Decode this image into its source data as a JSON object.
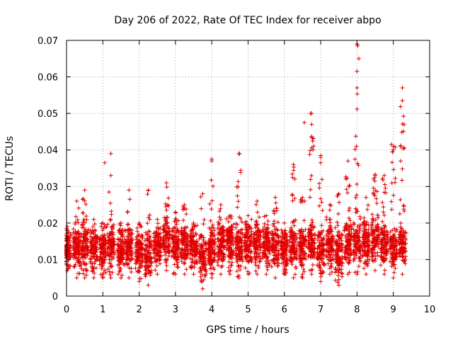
{
  "chart_data": {
    "type": "scatter",
    "title": "Day 206 of 2022, Rate Of TEC Index for receiver abpo",
    "xlabel": "GPS time / hours",
    "ylabel": "ROTI / TECUs",
    "xlim": [
      0,
      10
    ],
    "ylim": [
      0,
      0.07
    ],
    "xticks": [
      "0",
      "1",
      "2",
      "3",
      "4",
      "5",
      "6",
      "7",
      "8",
      "9",
      "10"
    ],
    "yticks": [
      "0",
      "0.01",
      "0.02",
      "0.03",
      "0.04",
      "0.05",
      "0.06",
      "0.07"
    ],
    "grid": true,
    "marker": "+",
    "color": "#e00000",
    "clusters": [
      {
        "x": 0.02,
        "low": 0.007,
        "high": 0.019
      },
      {
        "x": 0.28,
        "low": 0.005,
        "high": 0.026
      },
      {
        "x": 0.5,
        "low": 0.005,
        "high": 0.029
      },
      {
        "x": 0.75,
        "low": 0.005,
        "high": 0.021
      },
      {
        "x": 1.0,
        "low": 0.005,
        "high": 0.02
      },
      {
        "x": 1.22,
        "low": 0.005,
        "high": 0.033
      },
      {
        "x": 1.5,
        "low": 0.005,
        "high": 0.02
      },
      {
        "x": 1.72,
        "low": 0.005,
        "high": 0.029
      },
      {
        "x": 2.0,
        "low": 0.004,
        "high": 0.02
      },
      {
        "x": 2.25,
        "low": 0.003,
        "high": 0.029
      },
      {
        "x": 2.5,
        "low": 0.006,
        "high": 0.021
      },
      {
        "x": 2.75,
        "low": 0.007,
        "high": 0.031
      },
      {
        "x": 3.0,
        "low": 0.006,
        "high": 0.023
      },
      {
        "x": 3.25,
        "low": 0.006,
        "high": 0.025
      },
      {
        "x": 3.5,
        "low": 0.006,
        "high": 0.02
      },
      {
        "x": 3.75,
        "low": 0.002,
        "high": 0.028
      },
      {
        "x": 4.0,
        "low": 0.005,
        "high": 0.037
      },
      {
        "x": 4.25,
        "low": 0.006,
        "high": 0.025
      },
      {
        "x": 4.5,
        "low": 0.006,
        "high": 0.022
      },
      {
        "x": 4.75,
        "low": 0.005,
        "high": 0.039
      },
      {
        "x": 5.0,
        "low": 0.006,
        "high": 0.022
      },
      {
        "x": 5.25,
        "low": 0.006,
        "high": 0.026
      },
      {
        "x": 5.5,
        "low": 0.006,
        "high": 0.022
      },
      {
        "x": 5.75,
        "low": 0.005,
        "high": 0.027
      },
      {
        "x": 6.0,
        "low": 0.006,
        "high": 0.02
      },
      {
        "x": 6.25,
        "low": 0.005,
        "high": 0.036
      },
      {
        "x": 6.5,
        "low": 0.005,
        "high": 0.027
      },
      {
        "x": 6.75,
        "low": 0.006,
        "high": 0.05
      },
      {
        "x": 7.0,
        "low": 0.004,
        "high": 0.038
      },
      {
        "x": 7.25,
        "low": 0.006,
        "high": 0.025
      },
      {
        "x": 7.5,
        "low": 0.003,
        "high": 0.028
      },
      {
        "x": 7.75,
        "low": 0.006,
        "high": 0.037
      },
      {
        "x": 8.0,
        "low": 0.006,
        "high": 0.069
      },
      {
        "x": 8.25,
        "low": 0.006,
        "high": 0.027
      },
      {
        "x": 8.5,
        "low": 0.007,
        "high": 0.033
      },
      {
        "x": 8.75,
        "low": 0.006,
        "high": 0.033
      },
      {
        "x": 9.0,
        "low": 0.005,
        "high": 0.041
      },
      {
        "x": 9.25,
        "low": 0.006,
        "high": 0.057
      }
    ],
    "outliers": [
      {
        "x": 1.05,
        "y": 0.0365
      },
      {
        "x": 1.22,
        "y": 0.039
      },
      {
        "x": 4.0,
        "y": 0.0375
      },
      {
        "x": 4.75,
        "y": 0.039
      },
      {
        "x": 6.55,
        "y": 0.0475
      },
      {
        "x": 6.72,
        "y": 0.05
      },
      {
        "x": 6.75,
        "y": 0.047
      },
      {
        "x": 7.0,
        "y": 0.0385
      },
      {
        "x": 7.0,
        "y": 0.0365
      },
      {
        "x": 8.0,
        "y": 0.069
      },
      {
        "x": 8.02,
        "y": 0.0685
      },
      {
        "x": 8.05,
        "y": 0.065
      },
      {
        "x": 8.0,
        "y": 0.0615
      },
      {
        "x": 8.0,
        "y": 0.057
      },
      {
        "x": 8.0,
        "y": 0.0512
      },
      {
        "x": 8.5,
        "y": 0.0333
      },
      {
        "x": 8.95,
        "y": 0.0415
      },
      {
        "x": 8.98,
        "y": 0.0395
      },
      {
        "x": 9.25,
        "y": 0.057
      },
      {
        "x": 9.25,
        "y": 0.0535
      },
      {
        "x": 9.2,
        "y": 0.0412
      },
      {
        "x": 9.2,
        "y": 0.037
      }
    ]
  }
}
